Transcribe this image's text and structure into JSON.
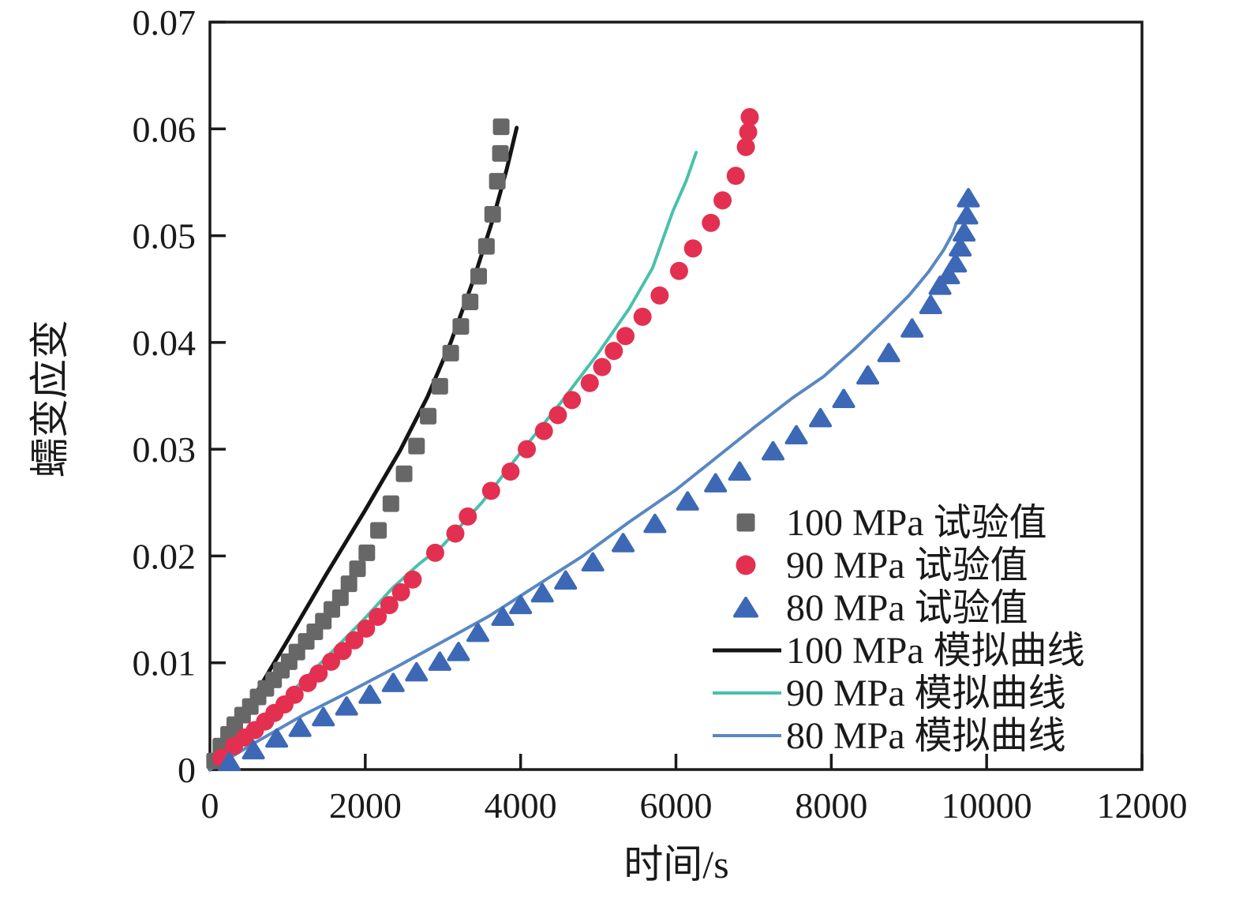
{
  "chart_data": {
    "type": "scatter",
    "title": "",
    "xlabel": "时间/s",
    "ylabel": "蠕变应变",
    "xlim": [
      0,
      12000
    ],
    "ylim": [
      0,
      0.07
    ],
    "xticks": [
      0,
      2000,
      4000,
      6000,
      8000,
      10000,
      12000
    ],
    "yticks": [
      0,
      0.01,
      0.02,
      0.03,
      0.04,
      0.05,
      0.06,
      0.07
    ],
    "xtick_labels": [
      "0",
      "2000",
      "4000",
      "6000",
      "8000",
      "10000",
      "12000"
    ],
    "ytick_labels": [
      "0",
      "0.01",
      "0.02",
      "0.03",
      "0.04",
      "0.05",
      "0.06",
      "0.07"
    ],
    "grid": false,
    "legend_position": "inside lower-right",
    "series": [
      {
        "name": "100 MPa 试验值",
        "kind": "scatter",
        "marker": "square",
        "color": "#676767",
        "points": [
          [
            60,
            0.0008
          ],
          [
            140,
            0.0022
          ],
          [
            240,
            0.0033
          ],
          [
            320,
            0.0042
          ],
          [
            420,
            0.0051
          ],
          [
            520,
            0.0059
          ],
          [
            620,
            0.0068
          ],
          [
            720,
            0.0076
          ],
          [
            820,
            0.0084
          ],
          [
            920,
            0.0093
          ],
          [
            1020,
            0.0101
          ],
          [
            1120,
            0.011
          ],
          [
            1240,
            0.012
          ],
          [
            1350,
            0.0129
          ],
          [
            1460,
            0.0139
          ],
          [
            1570,
            0.015
          ],
          [
            1680,
            0.0161
          ],
          [
            1790,
            0.0174
          ],
          [
            1900,
            0.0188
          ],
          [
            2020,
            0.0203
          ],
          [
            2170,
            0.0224
          ],
          [
            2330,
            0.0249
          ],
          [
            2500,
            0.0277
          ],
          [
            2660,
            0.0303
          ],
          [
            2810,
            0.0331
          ],
          [
            2960,
            0.0359
          ],
          [
            3100,
            0.039
          ],
          [
            3230,
            0.0415
          ],
          [
            3350,
            0.0438
          ],
          [
            3460,
            0.0462
          ],
          [
            3560,
            0.049
          ],
          [
            3640,
            0.052
          ],
          [
            3700,
            0.0551
          ],
          [
            3740,
            0.0577
          ],
          [
            3750,
            0.0602
          ]
        ]
      },
      {
        "name": "90 MPa 试验值",
        "kind": "scatter",
        "marker": "circle",
        "color": "#e33050",
        "points": [
          [
            150,
            0.0011
          ],
          [
            310,
            0.0022
          ],
          [
            450,
            0.003
          ],
          [
            580,
            0.0037
          ],
          [
            710,
            0.0045
          ],
          [
            830,
            0.0053
          ],
          [
            960,
            0.0061
          ],
          [
            1090,
            0.007
          ],
          [
            1260,
            0.0081
          ],
          [
            1400,
            0.009
          ],
          [
            1560,
            0.0101
          ],
          [
            1710,
            0.0111
          ],
          [
            1860,
            0.0121
          ],
          [
            2010,
            0.0132
          ],
          [
            2160,
            0.0143
          ],
          [
            2310,
            0.0154
          ],
          [
            2460,
            0.0166
          ],
          [
            2610,
            0.0178
          ],
          [
            2900,
            0.0203
          ],
          [
            3160,
            0.0221
          ],
          [
            3320,
            0.0237
          ],
          [
            3620,
            0.0261
          ],
          [
            3870,
            0.0279
          ],
          [
            4080,
            0.03
          ],
          [
            4300,
            0.0317
          ],
          [
            4480,
            0.0332
          ],
          [
            4660,
            0.0346
          ],
          [
            4890,
            0.0362
          ],
          [
            5050,
            0.0377
          ],
          [
            5200,
            0.0392
          ],
          [
            5350,
            0.0406
          ],
          [
            5570,
            0.0424
          ],
          [
            5790,
            0.0444
          ],
          [
            6040,
            0.0467
          ],
          [
            6220,
            0.0488
          ],
          [
            6450,
            0.0512
          ],
          [
            6600,
            0.0533
          ],
          [
            6770,
            0.0556
          ],
          [
            6900,
            0.0583
          ],
          [
            6930,
            0.0597
          ],
          [
            6950,
            0.0611
          ]
        ]
      },
      {
        "name": "80 MPa 试验值",
        "kind": "scatter",
        "marker": "triangle",
        "color": "#3d68b6",
        "points": [
          [
            250,
            0.0007
          ],
          [
            560,
            0.0018
          ],
          [
            860,
            0.0029
          ],
          [
            1160,
            0.0039
          ],
          [
            1460,
            0.0049
          ],
          [
            1760,
            0.0059
          ],
          [
            2060,
            0.007
          ],
          [
            2360,
            0.0081
          ],
          [
            2660,
            0.0091
          ],
          [
            2960,
            0.0101
          ],
          [
            3200,
            0.011
          ],
          [
            3450,
            0.0128
          ],
          [
            3770,
            0.0143
          ],
          [
            4000,
            0.0154
          ],
          [
            4280,
            0.0165
          ],
          [
            4580,
            0.0177
          ],
          [
            4930,
            0.0194
          ],
          [
            5320,
            0.0212
          ],
          [
            5730,
            0.023
          ],
          [
            6150,
            0.0251
          ],
          [
            6510,
            0.0268
          ],
          [
            6820,
            0.0279
          ],
          [
            7250,
            0.0298
          ],
          [
            7550,
            0.0313
          ],
          [
            7860,
            0.0329
          ],
          [
            8160,
            0.0347
          ],
          [
            8470,
            0.0369
          ],
          [
            8740,
            0.039
          ],
          [
            9040,
            0.0413
          ],
          [
            9280,
            0.0435
          ],
          [
            9400,
            0.0453
          ],
          [
            9510,
            0.0463
          ],
          [
            9600,
            0.0474
          ],
          [
            9660,
            0.0489
          ],
          [
            9710,
            0.0503
          ],
          [
            9745,
            0.0519
          ],
          [
            9765,
            0.0535
          ]
        ]
      },
      {
        "name": "100 MPa 模拟曲线",
        "kind": "line",
        "color": "#141414",
        "width": 5,
        "points": [
          [
            0,
            0
          ],
          [
            500,
            0.006
          ],
          [
            1000,
            0.0121
          ],
          [
            1500,
            0.0183
          ],
          [
            2000,
            0.0243
          ],
          [
            2450,
            0.0299
          ],
          [
            2800,
            0.0349
          ],
          [
            3100,
            0.04
          ],
          [
            3400,
            0.046
          ],
          [
            3650,
            0.0517
          ],
          [
            3820,
            0.0562
          ],
          [
            3950,
            0.0601
          ]
        ]
      },
      {
        "name": "90 MPa 模拟曲线",
        "kind": "line",
        "color": "#49c0ac",
        "width": 4,
        "points": [
          [
            0,
            0
          ],
          [
            500,
            0.0034
          ],
          [
            1000,
            0.0069
          ],
          [
            1500,
            0.0105
          ],
          [
            2000,
            0.0142
          ],
          [
            2350,
            0.017
          ],
          [
            2700,
            0.0193
          ],
          [
            3000,
            0.021
          ],
          [
            3500,
            0.025
          ],
          [
            4000,
            0.0297
          ],
          [
            4500,
            0.0342
          ],
          [
            5000,
            0.039
          ],
          [
            5400,
            0.0432
          ],
          [
            5700,
            0.047
          ],
          [
            5960,
            0.0523
          ],
          [
            6130,
            0.0551
          ],
          [
            6260,
            0.0578
          ]
        ]
      },
      {
        "name": "80 MPa 模拟曲线",
        "kind": "line",
        "color": "#5a87c2",
        "width": 4,
        "points": [
          [
            0,
            0
          ],
          [
            600,
            0.0026
          ],
          [
            1200,
            0.0051
          ],
          [
            1800,
            0.0073
          ],
          [
            2400,
            0.0096
          ],
          [
            3000,
            0.012
          ],
          [
            3600,
            0.0144
          ],
          [
            4200,
            0.0172
          ],
          [
            4800,
            0.02
          ],
          [
            5400,
            0.0232
          ],
          [
            6000,
            0.0262
          ],
          [
            6500,
            0.0291
          ],
          [
            7000,
            0.032
          ],
          [
            7500,
            0.0348
          ],
          [
            7900,
            0.0368
          ],
          [
            8300,
            0.0394
          ],
          [
            8700,
            0.0422
          ],
          [
            9000,
            0.0444
          ],
          [
            9250,
            0.0466
          ],
          [
            9450,
            0.0487
          ],
          [
            9570,
            0.0503
          ],
          [
            9610,
            0.0512
          ]
        ]
      }
    ],
    "legend": {
      "entries": [
        {
          "label": "100 MPa 试验值",
          "symbol": "square",
          "color": "#676767"
        },
        {
          "label": "90 MPa 试验值",
          "symbol": "circle",
          "color": "#e33050"
        },
        {
          "label": "80 MPa 试验值",
          "symbol": "triangle",
          "color": "#3d68b6"
        },
        {
          "label": "100 MPa 模拟曲线",
          "symbol": "line",
          "color": "#141414"
        },
        {
          "label": "90 MPa 模拟曲线",
          "symbol": "line",
          "color": "#49c0ac"
        },
        {
          "label": "80 MPa 模拟曲线",
          "symbol": "line",
          "color": "#5a87c2"
        }
      ]
    },
    "axis_color": "#1a1a1a"
  }
}
